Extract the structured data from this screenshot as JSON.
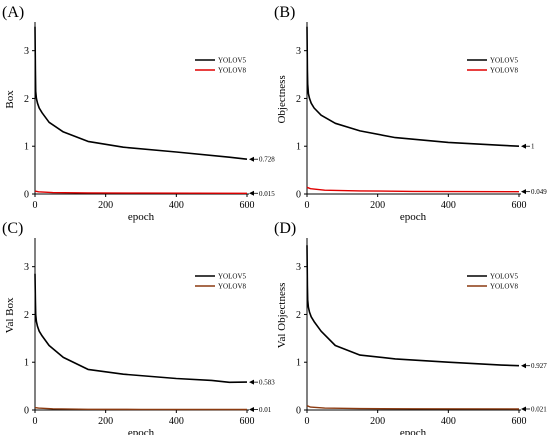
{
  "figure": {
    "panels": [
      {
        "letter": "(A)",
        "chart_data": {
          "type": "line",
          "xlabel": "epoch",
          "ylabel": "Box",
          "xlim": [
            0,
            600
          ],
          "ylim": [
            0,
            3.6
          ],
          "xticks": [
            "0",
            "200",
            "400",
            "600"
          ],
          "yticks": [
            "0",
            "1",
            "2",
            "3"
          ],
          "grid": false,
          "legend": "right",
          "series": [
            {
              "name": "YOLOV5",
              "color": "#000000",
              "x": [
                0,
                1,
                2,
                4,
                7,
                12,
                20,
                40,
                80,
                150,
                250,
                400,
                550,
                600
              ],
              "y": [
                3.5,
                2.6,
                2.15,
                2.0,
                1.9,
                1.8,
                1.7,
                1.5,
                1.3,
                1.1,
                0.98,
                0.88,
                0.77,
                0.728
              ]
            },
            {
              "name": "YOLOV8",
              "color": "#e00000",
              "x": [
                0,
                10,
                50,
                150,
                300,
                600
              ],
              "y": [
                0.06,
                0.045,
                0.03,
                0.022,
                0.018,
                0.015
              ]
            }
          ],
          "annotations": [
            "0.728",
            "0.015"
          ]
        }
      },
      {
        "letter": "(B)",
        "chart_data": {
          "type": "line",
          "xlabel": "epoch",
          "ylabel": "Objectness",
          "xlim": [
            0,
            600
          ],
          "ylim": [
            0,
            3.6
          ],
          "xticks": [
            "0",
            "200",
            "400",
            "600"
          ],
          "yticks": [
            "0",
            "1",
            "2",
            "3"
          ],
          "grid": false,
          "legend": "right",
          "series": [
            {
              "name": "YOLOV5",
              "color": "#000000",
              "x": [
                0,
                1,
                2,
                4,
                7,
                12,
                20,
                40,
                80,
                150,
                250,
                400,
                550,
                600
              ],
              "y": [
                3.5,
                2.6,
                2.3,
                2.1,
                2.0,
                1.9,
                1.8,
                1.65,
                1.48,
                1.32,
                1.18,
                1.08,
                1.02,
                1.0
              ]
            },
            {
              "name": "YOLOV8",
              "color": "#e00000",
              "x": [
                0,
                10,
                50,
                150,
                300,
                600
              ],
              "y": [
                0.14,
                0.11,
                0.08,
                0.065,
                0.055,
                0.049
              ]
            }
          ],
          "annotations": [
            "1",
            "0.049"
          ]
        }
      },
      {
        "letter": "(C)",
        "chart_data": {
          "type": "line",
          "xlabel": "epoch",
          "ylabel": "Val Box",
          "xlim": [
            0,
            600
          ],
          "ylim": [
            0,
            3.6
          ],
          "xticks": [
            "0",
            "200",
            "400",
            "600"
          ],
          "yticks": [
            "0",
            "1",
            "2",
            "3"
          ],
          "grid": false,
          "legend": "right",
          "series": [
            {
              "name": "YOLOV5",
              "color": "#000000",
              "x": [
                0,
                1,
                2,
                4,
                7,
                12,
                20,
                40,
                80,
                150,
                250,
                400,
                500,
                550,
                600
              ],
              "y": [
                2.85,
                2.3,
                2.0,
                1.85,
                1.75,
                1.65,
                1.55,
                1.35,
                1.1,
                0.85,
                0.75,
                0.66,
                0.62,
                0.58,
                0.583
              ]
            },
            {
              "name": "YOLOV8",
              "color": "#8b3a10",
              "x": [
                0,
                10,
                50,
                150,
                300,
                600
              ],
              "y": [
                0.05,
                0.04,
                0.025,
                0.015,
                0.012,
                0.01
              ]
            }
          ],
          "annotations": [
            "0.583",
            "0.01"
          ]
        }
      },
      {
        "letter": "(D)",
        "chart_data": {
          "type": "line",
          "xlabel": "epoch",
          "ylabel": "Val Objectness",
          "xlim": [
            0,
            600
          ],
          "ylim": [
            0,
            3.6
          ],
          "xticks": [
            "0",
            "200",
            "400",
            "600"
          ],
          "yticks": [
            "0",
            "1",
            "2",
            "3"
          ],
          "grid": false,
          "legend": "right",
          "series": [
            {
              "name": "YOLOV5",
              "color": "#000000",
              "x": [
                0,
                1,
                2,
                4,
                7,
                12,
                20,
                40,
                80,
                150,
                250,
                400,
                550,
                600
              ],
              "y": [
                3.45,
                2.6,
                2.3,
                2.15,
                2.05,
                1.95,
                1.85,
                1.65,
                1.35,
                1.15,
                1.07,
                1.0,
                0.94,
                0.927
              ]
            },
            {
              "name": "YOLOV8",
              "color": "#8b3a10",
              "x": [
                0,
                10,
                50,
                150,
                300,
                600
              ],
              "y": [
                0.09,
                0.06,
                0.04,
                0.03,
                0.025,
                0.021
              ]
            }
          ],
          "annotations": [
            "0.927",
            "0.021"
          ]
        }
      }
    ]
  }
}
